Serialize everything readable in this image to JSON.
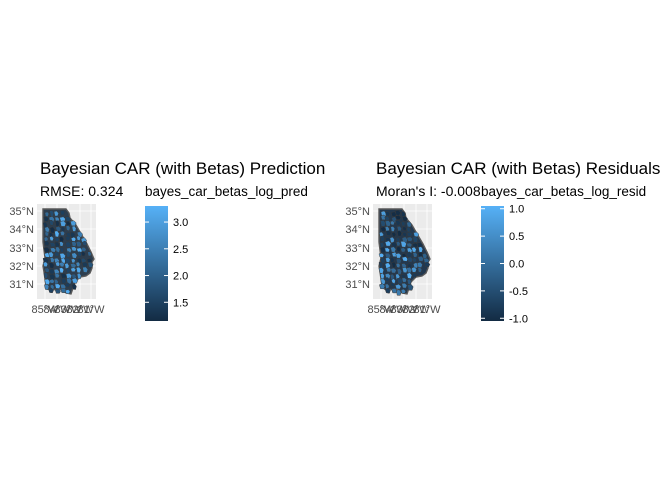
{
  "panels": [
    {
      "title": "Bayesian CAR (with Betas) Prediction",
      "subtitle": "RMSE: 0.324",
      "legend": {
        "title": "bayes_car_betas_log_pred",
        "ticks": [
          "3.0",
          "2.5",
          "2.0",
          "1.5"
        ],
        "range": [
          1.15,
          3.3
        ],
        "tick_values": [
          3.0,
          2.5,
          2.0,
          1.5
        ],
        "color_low": "#132b43",
        "color_high": "#56b1f7"
      },
      "y_ticks": [
        "35°N",
        "34°N",
        "33°N",
        "32°N",
        "31°N"
      ],
      "x_ticks": [
        "85°W",
        "84°W",
        "83°W",
        "82°W",
        "81°W"
      ]
    },
    {
      "title": "Bayesian CAR (with Betas) Residuals",
      "subtitle": "Moran's I: -0.008",
      "legend": {
        "title": "bayes_car_betas_log_resid",
        "ticks": [
          "1.0",
          "0.5",
          "0.0",
          "-0.5",
          "-1.0"
        ],
        "range": [
          -1.05,
          1.05
        ],
        "tick_values": [
          1.0,
          0.5,
          0.0,
          -0.5,
          -1.0
        ],
        "color_low": "#132b43",
        "color_high": "#56b1f7"
      },
      "y_ticks": [
        "35°N",
        "34°N",
        "33°N",
        "32°N",
        "31°N"
      ],
      "x_ticks": [
        "85°W",
        "84°W",
        "83°W",
        "82°W",
        "81°W"
      ]
    }
  ],
  "map": {
    "panel_background": "#ebebeb",
    "grid_color": "#ffffff",
    "state_fill": "#2c3e50",
    "border_color": "#595959"
  }
}
